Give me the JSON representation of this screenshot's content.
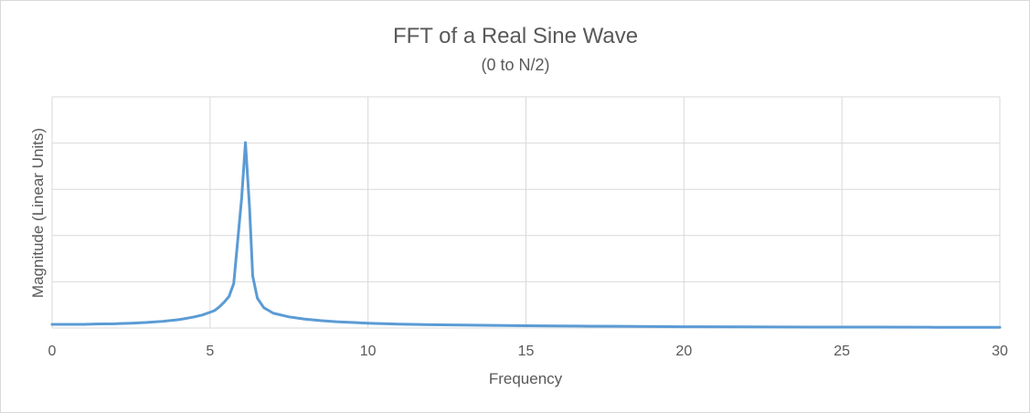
{
  "chart_data": {
    "type": "line",
    "title": "FFT of a Real Sine Wave",
    "subtitle": "(0 to N/2)",
    "xlabel": "Frequency",
    "ylabel": "Magnitude (Linear Units)",
    "xlim": [
      0,
      30
    ],
    "ylim": [
      0,
      1
    ],
    "xticks": [
      0,
      5,
      10,
      15,
      20,
      25,
      30
    ],
    "y_gridline_count": 5,
    "grid": true,
    "legend": "none",
    "line_color": "#5b9bd5",
    "series": [
      {
        "x": [
          0,
          0.5,
          1,
          1.5,
          2,
          2.5,
          3,
          3.5,
          4,
          4.25,
          4.5,
          4.75,
          5,
          5.15,
          5.3,
          5.45,
          5.6,
          5.75,
          6,
          6.12,
          6.25,
          6.35,
          6.5,
          6.7,
          7,
          7.5,
          8,
          8.5,
          9,
          9.5,
          10,
          11,
          12,
          13,
          14,
          15,
          16,
          17,
          18,
          19,
          20,
          22,
          24,
          26,
          28,
          30
        ],
        "values": [
          0.02,
          0.02,
          0.02,
          0.022,
          0.023,
          0.026,
          0.03,
          0.036,
          0.045,
          0.052,
          0.06,
          0.07,
          0.085,
          0.095,
          0.115,
          0.14,
          0.17,
          0.24,
          0.7,
          1.0,
          0.65,
          0.28,
          0.16,
          0.11,
          0.08,
          0.06,
          0.048,
          0.04,
          0.034,
          0.03,
          0.026,
          0.021,
          0.018,
          0.016,
          0.014,
          0.012,
          0.011,
          0.01,
          0.009,
          0.008,
          0.007,
          0.006,
          0.005,
          0.005,
          0.004,
          0.004
        ]
      }
    ]
  }
}
